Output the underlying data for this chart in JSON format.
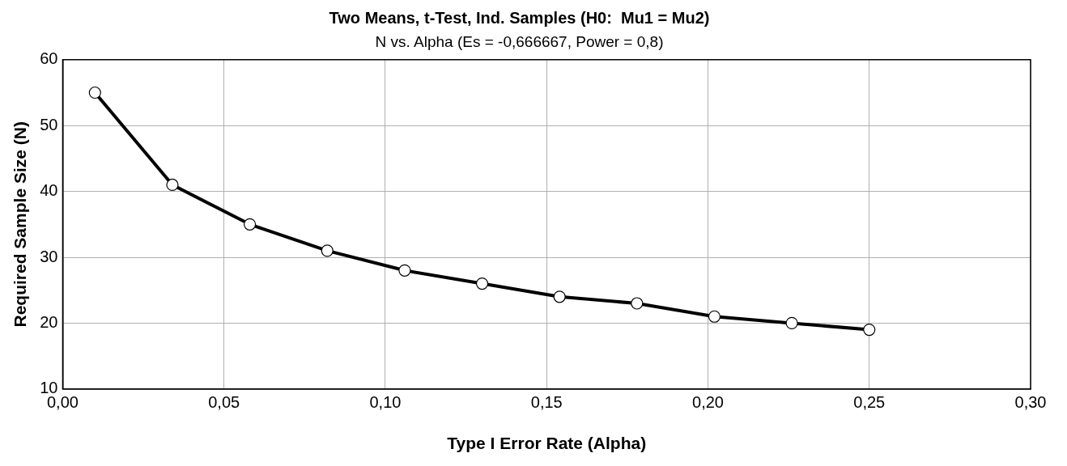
{
  "chart_data": {
    "type": "line",
    "title": "Two Means, t-Test, Ind. Samples (H0:  Mu1 = Mu2)",
    "subtitle": "N vs. Alpha (Es = -0,666667, Power = 0,8)",
    "xlabel": "Type I Error Rate (Alpha)",
    "ylabel": "Required Sample Size (N)",
    "x": [
      0.01,
      0.034,
      0.058,
      0.082,
      0.106,
      0.13,
      0.154,
      0.178,
      0.202,
      0.226,
      0.25
    ],
    "series": [
      {
        "color": "#000000",
        "values": [
          55,
          41,
          35,
          31,
          28,
          26,
          24,
          23,
          21,
          20,
          19
        ]
      }
    ],
    "xlim": [
      0,
      0.3
    ],
    "xticks": [
      {
        "value": 0,
        "label": "0,00"
      },
      {
        "value": 0.05,
        "label": "0,05"
      },
      {
        "value": 0.1,
        "label": "0,10"
      },
      {
        "value": 0.15,
        "label": "0,15"
      },
      {
        "value": 0.2,
        "label": "0,20"
      },
      {
        "value": 0.25,
        "label": "0,25"
      },
      {
        "value": 0.3,
        "label": "0,30"
      }
    ],
    "ylim": [
      10,
      60
    ],
    "yticks": [
      10,
      20,
      30,
      40,
      50,
      60
    ],
    "grid": true,
    "legend": false,
    "marker": "circle",
    "line_style": "solid"
  }
}
